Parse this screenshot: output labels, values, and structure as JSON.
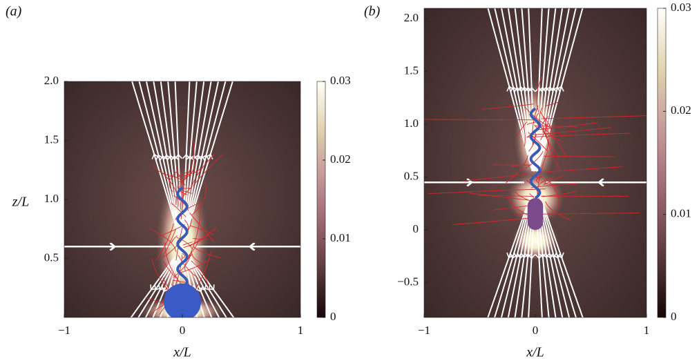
{
  "chart_data": [
    {
      "type": "streamplot",
      "panel_label": "(a)",
      "xlabel": "x/L",
      "ylabel": "z/L",
      "xlim": [
        -1,
        1
      ],
      "ylim": [
        0,
        2
      ],
      "xticks": [
        {
          "value": -1,
          "label": "−1"
        },
        0,
        1
      ],
      "yticks": [
        0.5,
        {
          "value": 1,
          "label": "1.0"
        },
        1.5,
        {
          "value": 2,
          "label": "2.0"
        }
      ],
      "colorbar": {
        "lim": [
          0,
          0.03
        ],
        "ticks": [
          0,
          0.01,
          0.02,
          0.03
        ]
      }
    },
    {
      "type": "streamplot",
      "panel_label": "(b)",
      "xlabel": "x/L",
      "xlim": [
        -1,
        1
      ],
      "ylim": [
        -0.83,
        2.1
      ],
      "xticks": [
        {
          "value": -1,
          "label": "−1"
        },
        0,
        1
      ],
      "yticks": [
        {
          "value": -0.5,
          "label": "−0.5"
        },
        0,
        0.5,
        {
          "value": 1,
          "label": "1.0"
        },
        1.5,
        {
          "value": 2,
          "label": "2.0"
        }
      ],
      "colorbar": {
        "lim": [
          0,
          0.03
        ],
        "ticks": [
          0,
          0.01,
          0.02,
          0.03
        ]
      }
    }
  ]
}
